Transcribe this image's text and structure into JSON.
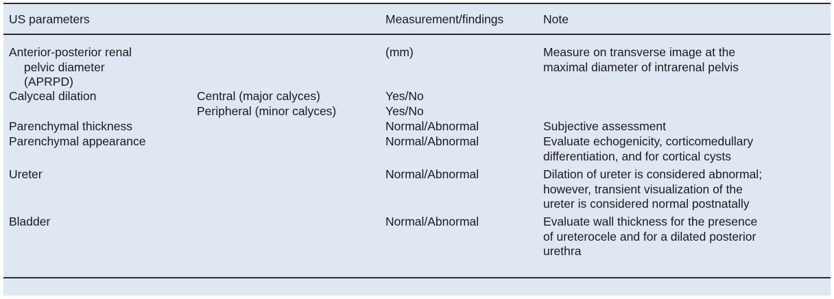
{
  "header": {
    "col1": "US parameters",
    "col3": "Measurement/findings",
    "col4": "Note"
  },
  "rows": [
    {
      "param_lines": [
        "Anterior-posterior renal",
        "pelvic diameter",
        "(APRPD)"
      ],
      "measurement": "(mm)",
      "note_lines": [
        "Measure on transverse image at the",
        "maximal diameter of intrarenal pelvis"
      ]
    },
    {
      "param": "Calyceal dilation",
      "sub": [
        "Central (major calyces)",
        "Peripheral (minor calyces)"
      ],
      "measurement_lines": [
        "Yes/No",
        "Yes/No"
      ]
    },
    {
      "param": "Parenchymal thickness",
      "measurement": "Normal/Abnormal",
      "note_lines": [
        "Subjective assessment"
      ]
    },
    {
      "param": "Parenchymal appearance",
      "measurement": "Normal/Abnormal",
      "note_lines": [
        "Evaluate echogenicity, corticomedullary",
        "differentiation, and for cortical cysts"
      ]
    },
    {
      "param": "Ureter",
      "measurement": "Normal/Abnormal",
      "note_lines": [
        "Dilation of ureter is considered abnormal;",
        "however, transient visualization of the",
        "ureter is considered normal postnatally"
      ]
    },
    {
      "param": "Bladder",
      "measurement": "Normal/Abnormal",
      "note_lines": [
        "Evaluate wall thickness for the presence",
        "of ureterocele and for a dilated posterior",
        "urethra"
      ]
    }
  ]
}
